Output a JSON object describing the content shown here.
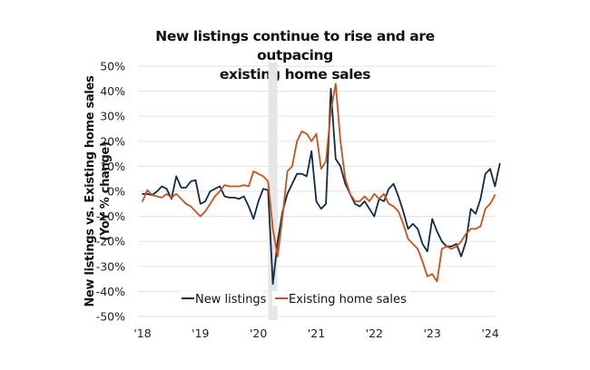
{
  "chart_data": {
    "type": "line",
    "title_lines": [
      "New listings continue to rise and are outpacing",
      "existing home sales"
    ],
    "ylabel_lines": [
      "New listings vs. Existing home sales",
      "(YoY % change)"
    ],
    "xlabel": "",
    "ylim": [
      -50,
      50
    ],
    "yticks": [
      50,
      40,
      30,
      20,
      10,
      0,
      -10,
      -20,
      -30,
      -40,
      -50
    ],
    "ytick_labels": [
      "50%",
      "40%",
      "30%",
      "20%",
      "10%",
      "0%",
      "-10%",
      "-20%",
      "-30%",
      "-40%",
      "-50%"
    ],
    "xticks": [
      2018,
      2019,
      2020,
      2021,
      2022,
      2023,
      2024
    ],
    "xtick_labels": [
      "'18",
      "'19",
      "'20",
      "'21",
      "'22",
      "'23",
      "'24"
    ],
    "xlim": [
      2018,
      2024.1
    ],
    "grid": "horizontal",
    "legend_position": "bottom-center",
    "shaded_band": {
      "x_start": 2020.17,
      "x_end": 2020.33,
      "color": "#e6e6e6"
    },
    "x_start": 2018.0,
    "x_step_months": 1,
    "series": [
      {
        "name": "New listings",
        "color": "#0d2c4a",
        "values": [
          -1,
          -1,
          -1.5,
          0,
          2,
          1,
          -3,
          6,
          1.5,
          1.5,
          4,
          4.5,
          -5,
          -4,
          0,
          1,
          2,
          -2,
          -2.5,
          -2.5,
          -3,
          -2,
          -6,
          -11,
          -4,
          1,
          0.5,
          -37,
          -20,
          -8,
          -1,
          3,
          7,
          7,
          6,
          16,
          -4,
          -7,
          -5,
          41,
          13,
          10,
          3,
          -1,
          -5,
          -6,
          -4,
          -7,
          -10,
          -3,
          -4,
          1,
          3,
          -2,
          -8,
          -15,
          -13,
          -15,
          -21,
          -24,
          -11,
          -16,
          -20,
          -22,
          -22,
          -21,
          -26,
          -20,
          -7,
          -9,
          -3,
          7,
          9,
          2,
          11
        ],
        "values_note": "monthly YoY % change, starting Jan 2018"
      },
      {
        "name": "Existing home sales",
        "color": "#c9521b",
        "values": [
          -4,
          0.5,
          -1.5,
          -2,
          -2.5,
          -1,
          -2.5,
          -1,
          -3,
          -5,
          -6,
          -8,
          -10,
          -8,
          -5,
          -2,
          0,
          2.5,
          2,
          2,
          2,
          2.5,
          2,
          8,
          7,
          6,
          4,
          -15,
          -26,
          -10,
          8,
          10,
          20,
          24,
          23,
          20,
          23,
          9,
          12,
          32,
          43,
          20,
          5,
          -1,
          -4,
          -4,
          -2,
          -4,
          -1,
          -3,
          -1,
          -5,
          -6,
          -8,
          -13,
          -19,
          -21,
          -23,
          -28,
          -34,
          -33,
          -36,
          -23,
          -22,
          -23,
          -22,
          -20,
          -17,
          -15,
          -15,
          -14,
          -7,
          -5,
          -1.5
        ],
        "values_note": "monthly YoY % change, starting Jan 2018"
      }
    ]
  }
}
